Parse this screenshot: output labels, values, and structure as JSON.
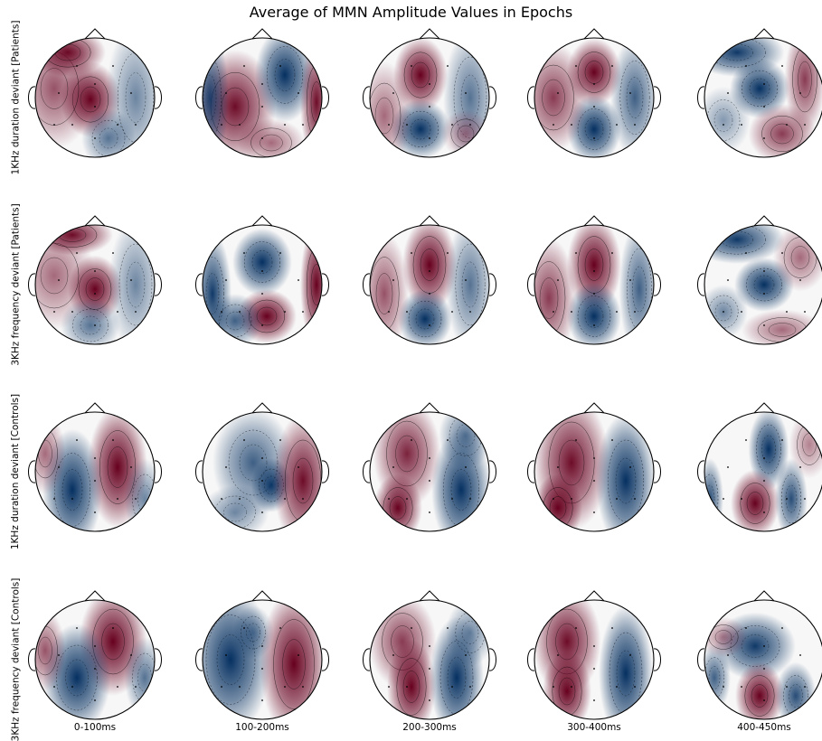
{
  "title": "Average of MMN Amplitude Values in Epochs",
  "chart_data": {
    "type": "heatmap",
    "title": "Average of MMN Amplitude Values in Epochs",
    "colormap": "RdBu_r",
    "colors": {
      "positive": "#67001f",
      "neutral": "#f7f7f7",
      "negative": "#053061"
    },
    "row_labels": [
      "1KHz duration deviant [Patients]",
      "3KHz frequency deviant [Patients]",
      "1KHz duration deviant [Controls]",
      "3KHz frequency deviant [Controls]"
    ],
    "column_labels": [
      "0-100ms",
      "100-200ms",
      "200-300ms",
      "300-400ms",
      "400-450ms"
    ]
  }
}
